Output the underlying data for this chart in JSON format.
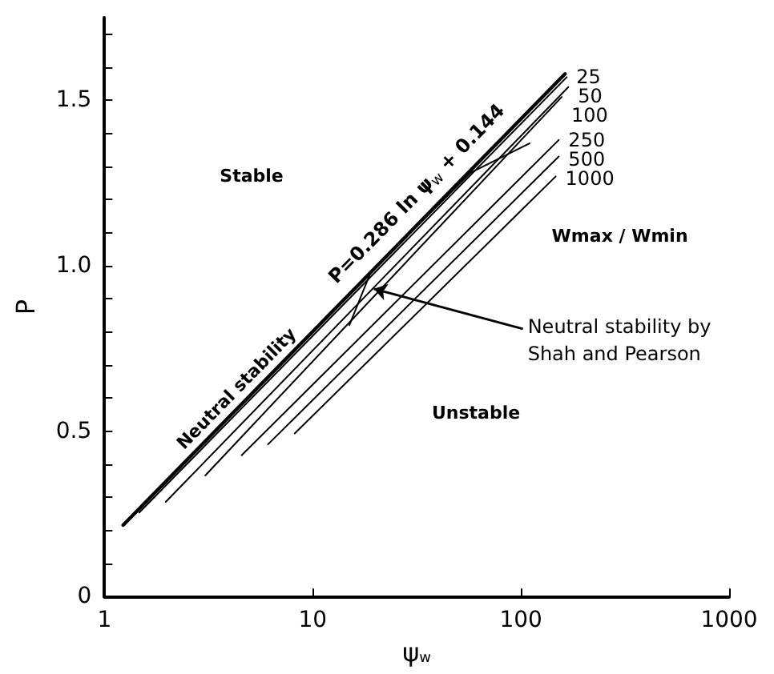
{
  "chart_data": {
    "type": "line",
    "xlabel": "ψ$_{w}$",
    "ylabel": "P",
    "legend_title": "Wmax / Wmin",
    "log": "x",
    "grid": false,
    "legend": false,
    "marker": "none",
    "line_style": "solid",
    "xlim": [
      1,
      1000
    ],
    "xticks": [
      1,
      10,
      100,
      1000
    ],
    "ylim": [
      0,
      1.75
    ],
    "yticks": [
      0,
      {
        "value": 0.1,
        "label": null
      },
      {
        "value": 0.2,
        "label": null
      },
      {
        "value": 0.3,
        "label": null
      },
      {
        "value": 0.4,
        "label": null
      },
      0.5,
      {
        "value": 0.6,
        "label": null
      },
      {
        "value": 0.7,
        "label": null
      },
      {
        "value": 0.8,
        "label": null
      },
      {
        "value": 0.9,
        "label": null
      },
      {
        "value": 1,
        "label": "1.0"
      },
      {
        "value": 1.1,
        "label": null
      },
      {
        "value": 1.2,
        "label": null
      },
      {
        "value": 1.3,
        "label": null
      },
      {
        "value": 1.4,
        "label": null
      },
      1.5,
      {
        "value": 1.6,
        "label": null
      },
      {
        "value": 1.7,
        "label": null
      }
    ],
    "series": [
      {
        "color": "#000000",
        "x": [
          1.23,
          163
        ],
        "values": [
          0.216,
          1.58
        ]
      },
      {
        "name": "25",
        "color": "#000000",
        "x": [
          1.47,
          166
        ],
        "values": [
          0.254,
          1.57
        ]
      },
      {
        "name": "50",
        "color": "#000000",
        "x": [
          1.97,
          169
        ],
        "values": [
          0.286,
          1.54
        ]
      },
      {
        "name": "100",
        "color": "#000000",
        "x": [
          3.05,
          157
        ],
        "values": [
          0.366,
          1.51
        ]
      },
      {
        "name": "250",
        "color": "#000000",
        "x": [
          4.56,
          152
        ],
        "values": [
          0.427,
          1.38
        ]
      },
      {
        "name": "500",
        "color": "#000000",
        "x": [
          6.1,
          152
        ],
        "values": [
          0.46,
          1.33
        ]
      },
      {
        "name": "1000",
        "color": "#000000",
        "x": [
          8.2,
          147
        ],
        "values": [
          0.493,
          1.27
        ]
      },
      {
        "color": "#000000",
        "x": [
          15,
          19,
          57,
          110
        ],
        "values": [
          0.82,
          0.98,
          1.28,
          1.37
        ]
      }
    ],
    "annotations": [
      "P=0.286 ln ψ$_{w}$ + 0.144",
      "Stable",
      "Unstable",
      "Neutral stability",
      {
        "text": "Neutral stability by\nShah and Pearson",
        "x": 19,
        "y": 0.93
      }
    ]
  }
}
